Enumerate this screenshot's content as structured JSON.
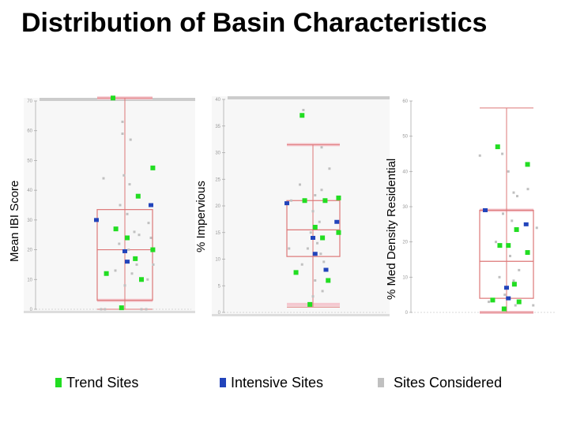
{
  "title": "Distribution of Basin Characteristics",
  "colors": {
    "trend": "#22dd22",
    "intensive": "#2244bb",
    "considered": "#c0c0c0",
    "box": "#dd7777",
    "band": "#f5c8d0"
  },
  "legend": [
    {
      "label": "Trend Sites",
      "color": "#22dd22"
    },
    {
      "label": "Intensive Sites",
      "color": "#2244bb"
    },
    {
      "label": "Sites Considered",
      "color": "#c0c0c0"
    }
  ],
  "chart_data": [
    {
      "type": "scatter",
      "ylabel": "Mean IBI Score",
      "ylim": [
        0,
        70
      ],
      "yticks": [
        0,
        10,
        20,
        30,
        40,
        50,
        60,
        70
      ],
      "box": {
        "min": 0,
        "q1": 3,
        "median": 20,
        "q3": 33.5,
        "max": 71,
        "upper_band": 71,
        "lower_band": 3
      },
      "trend": [
        71,
        47.5,
        38,
        27,
        24,
        20,
        17,
        12,
        10,
        0.5
      ],
      "intensive": [
        30,
        35,
        19.5,
        16
      ],
      "considered": [
        {
          "dx": -0.45,
          "v": 44
        },
        {
          "dx": -0.5,
          "v": 0
        },
        {
          "dx": -0.42,
          "v": 0
        },
        {
          "dx": -0.05,
          "v": 63
        },
        {
          "dx": -0.05,
          "v": 59
        },
        {
          "dx": 0.12,
          "v": 57
        },
        {
          "dx": -0.02,
          "v": 45
        },
        {
          "dx": 0.1,
          "v": 42
        },
        {
          "dx": -0.1,
          "v": 35
        },
        {
          "dx": 0.05,
          "v": 32
        },
        {
          "dx": 0.2,
          "v": 26
        },
        {
          "dx": 0.3,
          "v": 25
        },
        {
          "dx": -0.12,
          "v": 22
        },
        {
          "dx": 0.08,
          "v": 20
        },
        {
          "dx": 0.25,
          "v": 15
        },
        {
          "dx": -0.2,
          "v": 13
        },
        {
          "dx": 0.15,
          "v": 12
        },
        {
          "dx": 0.0,
          "v": 8
        },
        {
          "dx": 0.5,
          "v": 29
        },
        {
          "dx": 0.55,
          "v": 24
        },
        {
          "dx": 0.6,
          "v": 15
        },
        {
          "dx": 0.48,
          "v": 10
        },
        {
          "dx": 0.45,
          "v": 0
        },
        {
          "dx": 0.35,
          "v": 0
        }
      ]
    },
    {
      "type": "scatter",
      "ylabel": "% Impervious",
      "ylim": [
        0,
        40
      ],
      "yticks": [
        0,
        5,
        10,
        15,
        20,
        25,
        30,
        35,
        40
      ],
      "box": {
        "min": 1,
        "q1": 10.5,
        "median": 15.5,
        "q3": 21,
        "max": 31.5,
        "upper_band": 31.5,
        "lower_band": 1.5
      },
      "trend": [
        37,
        21.5,
        21,
        21,
        16,
        15,
        14,
        7.5,
        6,
        1.5
      ],
      "intensive": [
        20.5,
        17,
        14,
        11,
        8
      ],
      "considered": [
        {
          "dx": -0.22,
          "v": 38
        },
        {
          "dx": 0.2,
          "v": 31
        },
        {
          "dx": 0.38,
          "v": 27
        },
        {
          "dx": 0.2,
          "v": 23
        },
        {
          "dx": -0.3,
          "v": 24
        },
        {
          "dx": 0.05,
          "v": 22
        },
        {
          "dx": -0.5,
          "v": 21
        },
        {
          "dx": 0.0,
          "v": 19
        },
        {
          "dx": 0.15,
          "v": 17
        },
        {
          "dx": -0.05,
          "v": 15
        },
        {
          "dx": 0.1,
          "v": 13
        },
        {
          "dx": -0.12,
          "v": 12
        },
        {
          "dx": 0.18,
          "v": 11
        },
        {
          "dx": -0.25,
          "v": 9
        },
        {
          "dx": 0.05,
          "v": 6
        },
        {
          "dx": 0.22,
          "v": 4
        },
        {
          "dx": -0.55,
          "v": 12
        },
        {
          "dx": 0.25,
          "v": 9.5
        },
        {
          "dx": 0.0,
          "v": 3
        }
      ]
    },
    {
      "type": "scatter",
      "ylabel": "% Med Density Residential",
      "ylim": [
        0,
        60
      ],
      "yticks": [
        0,
        10,
        20,
        30,
        40,
        50,
        60
      ],
      "box": {
        "min": 0,
        "q1": 4,
        "median": 14.5,
        "q3": 29,
        "max": 58,
        "upper_band": 29,
        "lower_band": 0
      },
      "trend": [
        47,
        42,
        23.5,
        19,
        19,
        17,
        8,
        3.5,
        3,
        1
      ],
      "intensive": [
        29,
        25,
        7,
        4
      ],
      "considered": [
        {
          "dx": -0.75,
          "v": 44.5
        },
        {
          "dx": 0.05,
          "v": 40
        },
        {
          "dx": -0.12,
          "v": 45
        },
        {
          "dx": 0.2,
          "v": 34
        },
        {
          "dx": 0.3,
          "v": 33
        },
        {
          "dx": 0.6,
          "v": 35
        },
        {
          "dx": -0.1,
          "v": 28
        },
        {
          "dx": 0.15,
          "v": 26
        },
        {
          "dx": 0.85,
          "v": 24
        },
        {
          "dx": -0.3,
          "v": 20
        },
        {
          "dx": 0.1,
          "v": 16
        },
        {
          "dx": 0.35,
          "v": 12
        },
        {
          "dx": -0.2,
          "v": 10
        },
        {
          "dx": 0.2,
          "v": 9
        },
        {
          "dx": -0.05,
          "v": 5
        },
        {
          "dx": 0.75,
          "v": 2
        },
        {
          "dx": 0.25,
          "v": 2
        },
        {
          "dx": -0.5,
          "v": 3
        }
      ]
    }
  ]
}
